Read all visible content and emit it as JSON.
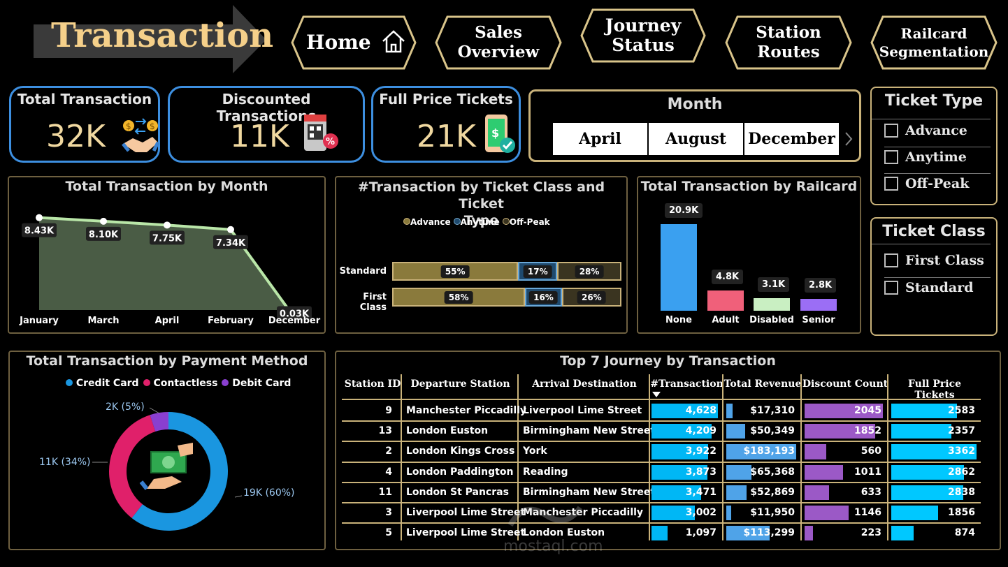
{
  "header": {
    "title": "Transaction",
    "nav": [
      {
        "label": "Home",
        "icon": "home-icon"
      },
      {
        "label": "Sales\nOverview"
      },
      {
        "label": "Journey\nStatus"
      },
      {
        "label": "Station\nRoutes"
      },
      {
        "label": "Railcard\nSegmentation"
      }
    ]
  },
  "kpis": [
    {
      "title": "Total Transaction",
      "value": "32K",
      "icon": "handshake-money-icon"
    },
    {
      "title": "Discounted Transactions",
      "value": "11K",
      "icon": "discount-qr-icon"
    },
    {
      "title": "Full Price Tickets",
      "value": "21K",
      "icon": "phone-payment-icon"
    }
  ],
  "month_slicer": {
    "title": "Month",
    "options": [
      "April",
      "August",
      "December"
    ]
  },
  "ticket_type_slicer": {
    "title": "Ticket Type",
    "options": [
      "Advance",
      "Anytime",
      "Off-Peak"
    ]
  },
  "ticket_class_slicer": {
    "title": "Ticket Class",
    "options": [
      "First Class",
      "Standard"
    ]
  },
  "colors": {
    "gold": "#c9b27a",
    "blue_border": "#3d8fe0",
    "area_fill": "#4a5c45",
    "area_line": "#b9e6a8",
    "advance": "#8a7a3c",
    "anytime": "#1f4a6e",
    "offpeak": "#3a3420",
    "credit": "#1a96e0",
    "contactless": "#e0206a",
    "debit": "#8a3fd0"
  },
  "chart_month": {
    "title": "Total Transaction by Month",
    "chart_data": {
      "type": "area",
      "categories": [
        "January",
        "March",
        "April",
        "February",
        "December"
      ],
      "values": [
        8.43,
        8.1,
        7.75,
        7.34,
        0.03
      ],
      "labels": [
        "8.43K",
        "8.10K",
        "7.75K",
        "7.34K",
        "0.03K"
      ]
    }
  },
  "chart_class": {
    "title": "#Transaction by Ticket Class and Ticket\nType",
    "legend": [
      "Advance",
      "Anytime",
      "Off-Peak"
    ],
    "chart_data": {
      "type": "bar",
      "categories": [
        "Standard",
        "First Class"
      ],
      "series": [
        {
          "name": "Advance",
          "values": [
            55,
            58
          ]
        },
        {
          "name": "Anytime",
          "values": [
            17,
            16
          ]
        },
        {
          "name": "Off-Peak",
          "values": [
            28,
            26
          ]
        }
      ],
      "labels": [
        [
          "55%",
          "17%",
          "28%"
        ],
        [
          "58%",
          "16%",
          "26%"
        ]
      ]
    }
  },
  "chart_railcard": {
    "title": "Total Transaction by Railcard",
    "chart_data": {
      "type": "bar",
      "categories": [
        "None",
        "Adult",
        "Disabled",
        "Senior"
      ],
      "values": [
        20.9,
        4.8,
        3.1,
        2.8
      ],
      "labels": [
        "20.9K",
        "4.8K",
        "3.1K",
        "2.8K"
      ],
      "colors": [
        "#3aa0f0",
        "#f0607a",
        "#c9efc2",
        "#9b6ef5"
      ]
    }
  },
  "chart_payment": {
    "title": "Total Transaction by Payment Method",
    "legend": [
      "Credit Card",
      "Contactless",
      "Debit Card"
    ],
    "chart_data": {
      "type": "pie",
      "categories": [
        "Credit Card",
        "Contactless",
        "Debit Card"
      ],
      "values": [
        60,
        34,
        5
      ],
      "labels": [
        "19K (60%)",
        "11K (34%)",
        "2K (5%)"
      ]
    }
  },
  "table": {
    "title": "Top 7 Journey by Transaction",
    "columns": [
      "Station ID",
      "Departure Station",
      "Arrival Destination",
      "#Transaction",
      "Total Revenue",
      "Discount Count",
      "Full Price Tickets"
    ],
    "rows": [
      {
        "id": "9",
        "dep": "Manchester Piccadilly",
        "arr": "Liverpool Lime Street",
        "tx": "4,628",
        "tx_v": 4628,
        "rev": "$17,310",
        "rev_v": 17310,
        "disc": "2045",
        "disc_v": 2045,
        "full": "2583",
        "full_v": 2583
      },
      {
        "id": "13",
        "dep": "London Euston",
        "arr": "Birmingham New Street",
        "tx": "4,209",
        "tx_v": 4209,
        "rev": "$50,349",
        "rev_v": 50349,
        "disc": "1852",
        "disc_v": 1852,
        "full": "2357",
        "full_v": 2357
      },
      {
        "id": "2",
        "dep": "London Kings Cross",
        "arr": "York",
        "tx": "3,922",
        "tx_v": 3922,
        "rev": "$183,193",
        "rev_v": 183193,
        "disc": "560",
        "disc_v": 560,
        "full": "3362",
        "full_v": 3362
      },
      {
        "id": "4",
        "dep": "London Paddington",
        "arr": "Reading",
        "tx": "3,873",
        "tx_v": 3873,
        "rev": "$65,368",
        "rev_v": 65368,
        "disc": "1011",
        "disc_v": 1011,
        "full": "2862",
        "full_v": 2862
      },
      {
        "id": "11",
        "dep": "London St Pancras",
        "arr": "Birmingham New Street",
        "tx": "3,471",
        "tx_v": 3471,
        "rev": "$52,869",
        "rev_v": 52869,
        "disc": "633",
        "disc_v": 633,
        "full": "2838",
        "full_v": 2838
      },
      {
        "id": "3",
        "dep": "Liverpool Lime Street",
        "arr": "Manchester Piccadilly",
        "tx": "3,002",
        "tx_v": 3002,
        "rev": "$11,950",
        "rev_v": 11950,
        "disc": "1146",
        "disc_v": 1146,
        "full": "1856",
        "full_v": 1856
      },
      {
        "id": "5",
        "dep": "Liverpool Lime Street",
        "arr": "London Euston",
        "tx": "1,097",
        "tx_v": 1097,
        "rev": "$113,299",
        "rev_v": 113299,
        "disc": "223",
        "disc_v": 223,
        "full": "874",
        "full_v": 874
      }
    ]
  },
  "watermark": {
    "text": "mostaql.com"
  }
}
